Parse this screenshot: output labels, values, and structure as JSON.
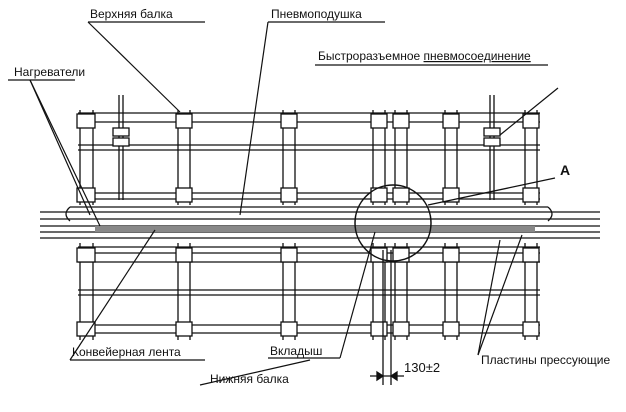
{
  "labels": {
    "upper_beam": "Верхняя балка",
    "air_cushion": "Пневмоподушка",
    "quick_connect_prefix": "Быстроразъемное ",
    "quick_connect_word": "пневмосоединение",
    "heaters": "Нагреватели",
    "detail_marker": "А",
    "conveyor_belt": "Конвейерная лента",
    "insert": "Вкладыш",
    "dimension": "130",
    "dimension_tolerance": "±2",
    "press_plates": "Пластины прессующие",
    "lower_beam": "Нижняя балка"
  },
  "colors": {
    "ink": "#111111",
    "spellcheck_underline": "#c0392b",
    "background": "#ffffff"
  }
}
